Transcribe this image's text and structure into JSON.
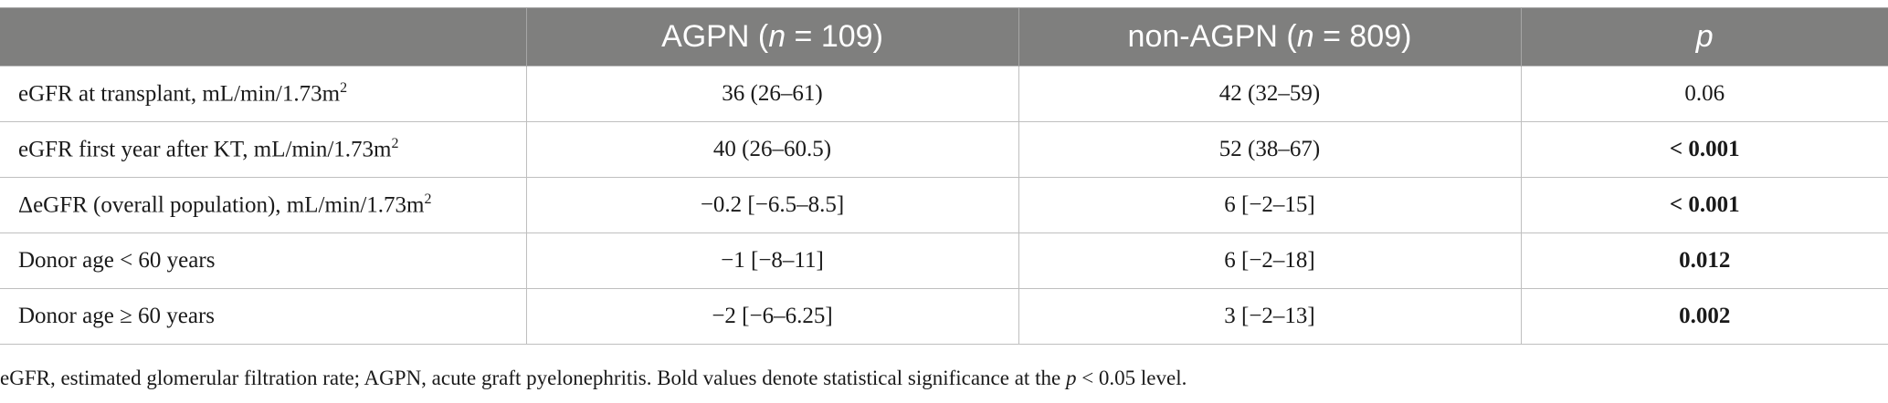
{
  "table": {
    "headers": [
      {
        "text": "",
        "italic_n": "",
        "count": ""
      },
      {
        "label": "AGPN (",
        "n": "n",
        "rest": " = 109)"
      },
      {
        "label": "non-AGPN (",
        "n": "n",
        "rest": " = 809)"
      },
      {
        "p": "p"
      }
    ],
    "rows": [
      {
        "label": "eGFR at transplant, mL/min/1.73m",
        "sup": "2",
        "agpn": "36 (26–61)",
        "non_agpn": "42 (32–59)",
        "p": "0.06",
        "p_bold": false
      },
      {
        "label": "eGFR first year after KT, mL/min/1.73m",
        "sup": "2",
        "agpn": "40 (26–60.5)",
        "non_agpn": "52 (38–67)",
        "p": "< 0.001",
        "p_bold": true
      },
      {
        "label": "ΔeGFR (overall population), mL/min/1.73m",
        "sup": "2",
        "agpn": "−0.2 [−6.5–8.5]",
        "non_agpn": "6 [−2–15]",
        "p": "< 0.001",
        "p_bold": true
      },
      {
        "label": "Donor age < 60 years",
        "sup": "",
        "agpn": "−1 [−8–11]",
        "non_agpn": "6 [−2–18]",
        "p": "0.012",
        "p_bold": true
      },
      {
        "label": "Donor age ≥ 60 years",
        "sup": "",
        "agpn": "−2 [−6–6.25]",
        "non_agpn": "3 [−2–13]",
        "p": "0.002",
        "p_bold": true
      }
    ]
  },
  "footnote": {
    "before": "eGFR, estimated glomerular filtration rate; AGPN, acute graft pyelonephritis. Bold values denote statistical significance at the ",
    "p": "p",
    "after": " < 0.05 level."
  }
}
